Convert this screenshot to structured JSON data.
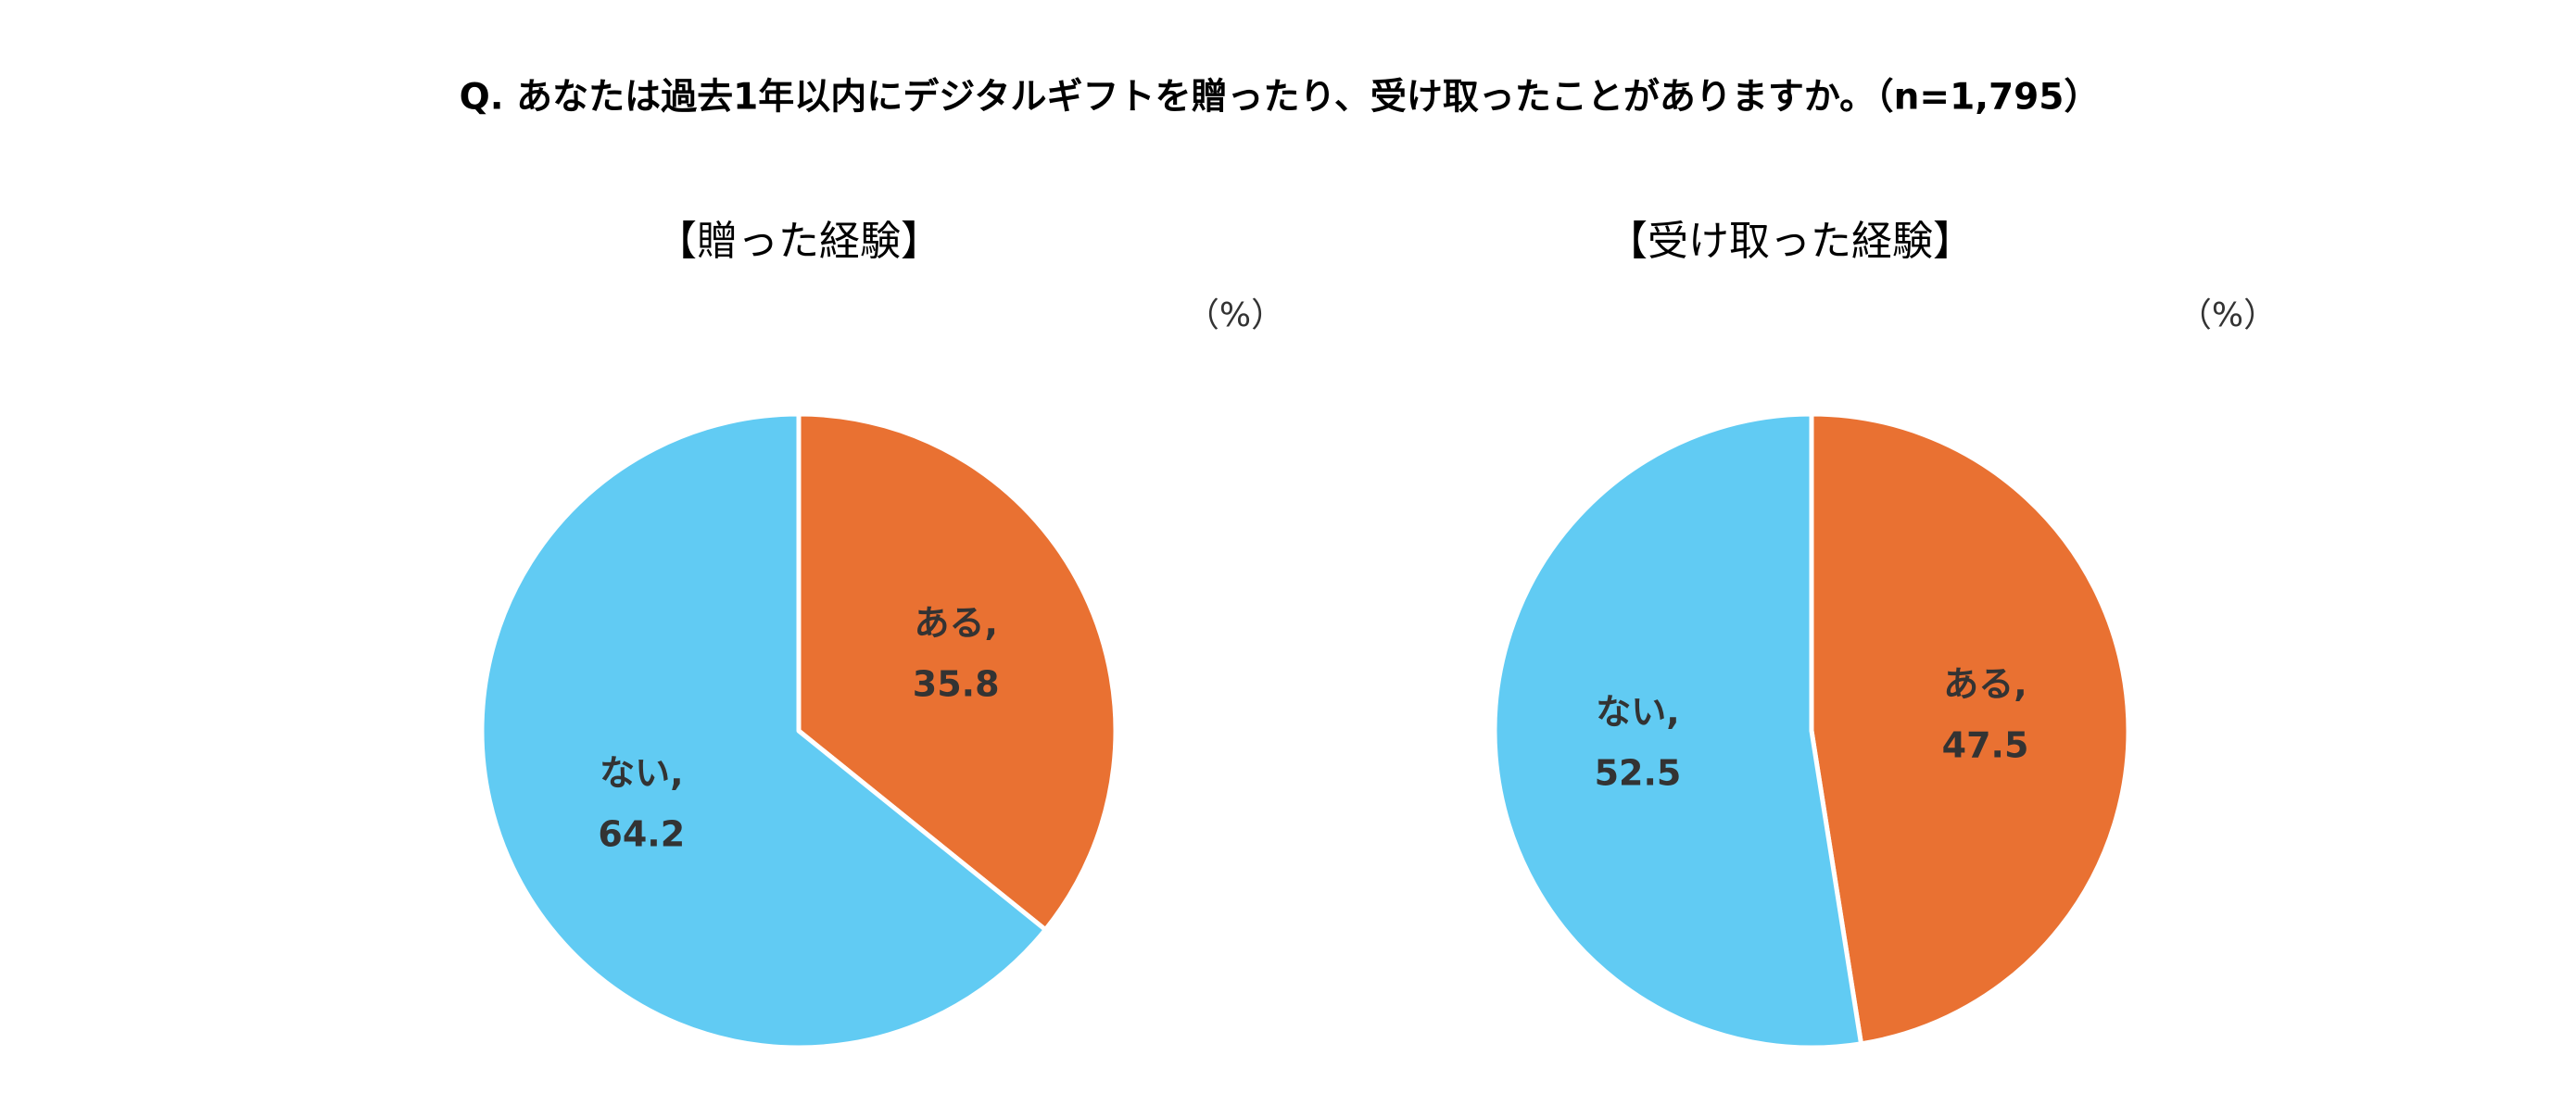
{
  "title": "Q. あなたは過去1年以内にデジタルギフトを贈ったり、受け取ったことがありますか。（n=1,795）",
  "chart_data": [
    {
      "type": "pie",
      "title": "【贈った経験】",
      "unit_label": "（%）",
      "categories": [
        "ある,",
        "ない,"
      ],
      "values": [
        35.8,
        64.2
      ],
      "colors": [
        "#e97132",
        "#61cbf3"
      ]
    },
    {
      "type": "pie",
      "title": "【受け取った経験】",
      "unit_label": "（%）",
      "categories": [
        "ある,",
        "ない,"
      ],
      "values": [
        47.5,
        52.5
      ],
      "colors": [
        "#e97132",
        "#61cbf3"
      ]
    }
  ]
}
